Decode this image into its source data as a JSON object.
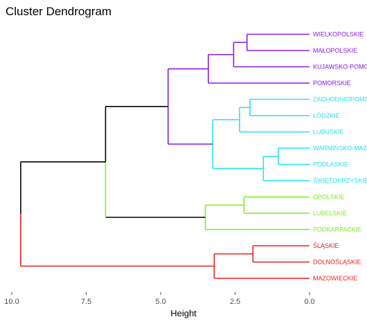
{
  "chart_data": {
    "type": "dendrogram",
    "title": "Cluster Dendrogram",
    "xlabel": "Height",
    "ylabel": "",
    "x_reversed": true,
    "xlim": [
      10.0,
      0.0
    ],
    "x_ticks": [
      10.0,
      7.5,
      5.0,
      2.5,
      0.0
    ],
    "x_tick_labels": [
      "10.0",
      "7.5",
      "5.0",
      "2.5",
      "0.0"
    ],
    "grid": false,
    "legend": "none",
    "colors": {
      "purple": "#8B1AE0",
      "cyan": "#1FE3F0",
      "green": "#7CEE1A",
      "red": "#E8201E",
      "black": "#000000"
    },
    "leaves": [
      {
        "label": "WIELKOPOLSKIE",
        "color": "#8B1AE0"
      },
      {
        "label": "MAŁOPOLSKIE",
        "color": "#8B1AE0"
      },
      {
        "label": "KUJAWSKO-POMORSKIE",
        "color": "#8B1AE0"
      },
      {
        "label": "POMORSKIE",
        "color": "#8B1AE0"
      },
      {
        "label": "ZACHODNIOPOMORSKIE",
        "color": "#1FE3F0"
      },
      {
        "label": "ŁÓDZKIE",
        "color": "#1FE3F0"
      },
      {
        "label": "LUBUSKIE",
        "color": "#1FE3F0"
      },
      {
        "label": "WARMIŃSKO-MAZURSKIE",
        "color": "#1FE3F0"
      },
      {
        "label": "PODLASKIE",
        "color": "#1FE3F0"
      },
      {
        "label": "ŚWIĘTOKRZYSKIE",
        "color": "#1FE3F0"
      },
      {
        "label": "OPOLSKIE",
        "color": "#7CEE1A"
      },
      {
        "label": "LUBELSKIE",
        "color": "#7CEE1A"
      },
      {
        "label": "PODKARPACKIE",
        "color": "#7CEE1A"
      },
      {
        "label": "ŚLĄSKIE",
        "color": "#E8201E"
      },
      {
        "label": "DOLNOŚLĄSKIE",
        "color": "#E8201E"
      },
      {
        "label": "MAZOWIECKIE",
        "color": "#E8201E"
      }
    ],
    "merges": [
      {
        "id": "m1",
        "left": 0,
        "right": 1,
        "height": 2.1,
        "color": "#8B1AE0"
      },
      {
        "id": "m2",
        "left": "m1",
        "right": 2,
        "height": 2.55,
        "color": "#8B1AE0"
      },
      {
        "id": "m3",
        "left": "m2",
        "right": 3,
        "height": 3.4,
        "color": "#8B1AE0"
      },
      {
        "id": "m4",
        "left": 4,
        "right": 5,
        "height": 2.0,
        "color": "#1FE3F0"
      },
      {
        "id": "m5",
        "left": "m4",
        "right": 6,
        "height": 2.35,
        "color": "#1FE3F0"
      },
      {
        "id": "m6",
        "left": 7,
        "right": 8,
        "height": 1.05,
        "color": "#1FE3F0"
      },
      {
        "id": "m7",
        "left": "m6",
        "right": 9,
        "height": 1.55,
        "color": "#1FE3F0"
      },
      {
        "id": "m8",
        "left": "m5",
        "right": "m7",
        "height": 3.25,
        "color": "#1FE3F0"
      },
      {
        "id": "m9",
        "left": "m3",
        "right": "m8",
        "height": 4.75,
        "color": "#8B1AE0"
      },
      {
        "id": "m10",
        "left": 10,
        "right": 11,
        "height": 2.2,
        "color": "#7CEE1A"
      },
      {
        "id": "m11",
        "left": "m10",
        "right": 12,
        "height": 3.5,
        "color": "#7CEE1A"
      },
      {
        "id": "m12",
        "left": "m9",
        "right": "m11",
        "height": 6.85,
        "color": "#000000"
      },
      {
        "id": "m13",
        "left": 13,
        "right": 14,
        "height": 1.9,
        "color": "#E8201E"
      },
      {
        "id": "m14",
        "left": "m13",
        "right": 15,
        "height": 3.2,
        "color": "#E8201E"
      },
      {
        "id": "m15",
        "left": "m12",
        "right": "m14",
        "height": 9.7,
        "color": "#000000"
      }
    ]
  }
}
